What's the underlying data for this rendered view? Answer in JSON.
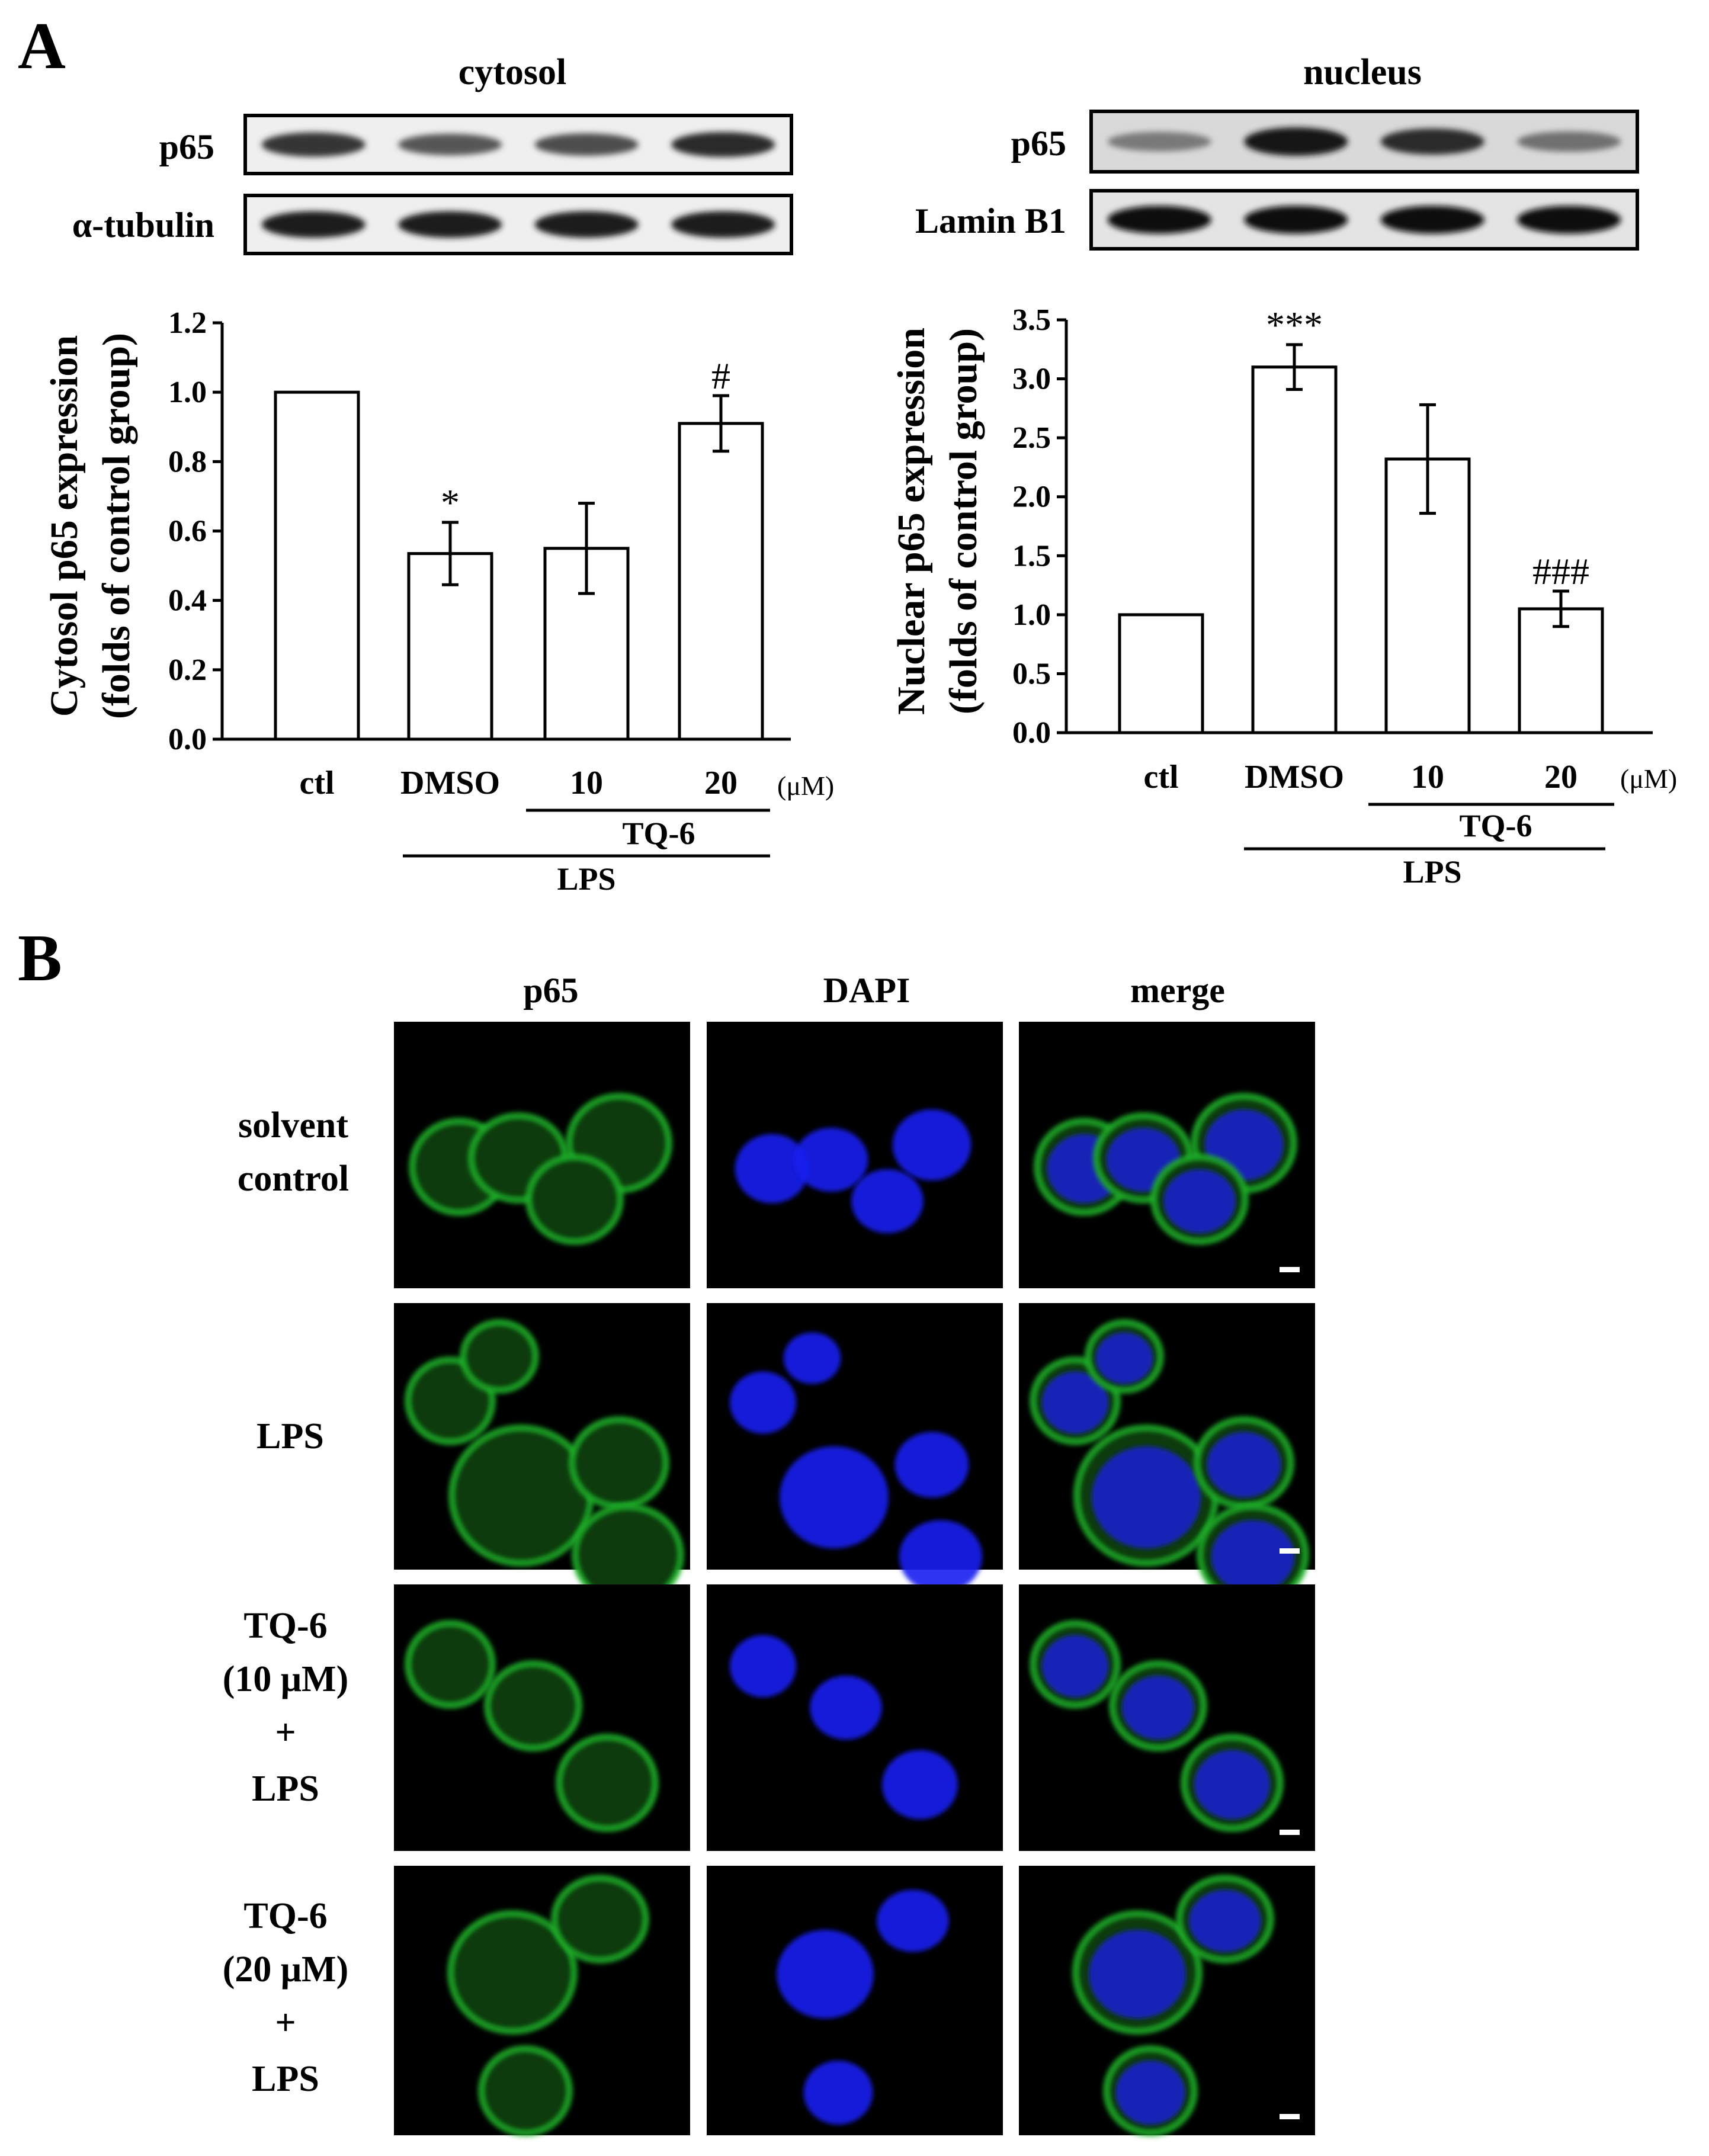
{
  "panels": {
    "A": {
      "letter": "A"
    },
    "B": {
      "letter": "B"
    }
  },
  "blots": {
    "cytosol": {
      "title": "cytosol",
      "rows": [
        {
          "label": "p65",
          "intensity": [
            0.75,
            0.55,
            0.6,
            0.8
          ]
        },
        {
          "label": "α-tubulin",
          "intensity": [
            0.9,
            0.9,
            0.9,
            0.9
          ]
        }
      ]
    },
    "nucleus": {
      "title": "nucleus",
      "rows": [
        {
          "label": "p65",
          "intensity": [
            0.35,
            0.95,
            0.8,
            0.4
          ]
        },
        {
          "label": "Lamin B1",
          "intensity": [
            1.0,
            1.0,
            1.0,
            1.0
          ]
        }
      ]
    }
  },
  "chart_data": [
    {
      "type": "bar",
      "ylabel_line1": "Cytosol p65 expression",
      "ylabel_line2": "(folds of control group)",
      "categories": [
        "ctl",
        "DMSO",
        "10",
        "20"
      ],
      "values": [
        1.0,
        0.535,
        0.55,
        0.91
      ],
      "errors": [
        0,
        0.09,
        0.13,
        0.08
      ],
      "significance": [
        "",
        "*",
        "",
        "#"
      ],
      "ylim": [
        0,
        1.2
      ],
      "yticks": [
        "0.0",
        "0.2",
        "0.4",
        "0.6",
        "0.8",
        "1.0",
        "1.2"
      ],
      "unit": "(μM)",
      "bracket_inner": "TQ-6",
      "bracket_outer": "LPS"
    },
    {
      "type": "bar",
      "ylabel_line1": "Nuclear p65 expression",
      "ylabel_line2": "(folds of control group)",
      "categories": [
        "ctl",
        "DMSO",
        "10",
        "20"
      ],
      "values": [
        1.0,
        3.1,
        2.32,
        1.05
      ],
      "errors": [
        0,
        0.19,
        0.46,
        0.15
      ],
      "significance": [
        "",
        "***",
        "",
        "###"
      ],
      "ylim": [
        0,
        3.5
      ],
      "yticks": [
        "0.0",
        "0.5",
        "1.0",
        "1.5",
        "2.0",
        "2.5",
        "3.0",
        "3.5"
      ],
      "unit": "(μM)",
      "bracket_inner": "TQ-6",
      "bracket_outer": "LPS"
    }
  ],
  "microscopy": {
    "columns": [
      "p65",
      "DAPI",
      "merge"
    ],
    "rows": [
      {
        "label_lines": [
          "solvent",
          "control"
        ]
      },
      {
        "label_lines": [
          "LPS"
        ]
      },
      {
        "label_lines": [
          "TQ-6",
          "(10 μM)",
          "+",
          "LPS"
        ]
      },
      {
        "label_lines": [
          "TQ-6",
          "(20 μM)",
          "+",
          "LPS"
        ]
      }
    ],
    "colors": {
      "p65": "#1fb52a",
      "dapi": "#1a1cf0",
      "background": "#000000"
    }
  }
}
